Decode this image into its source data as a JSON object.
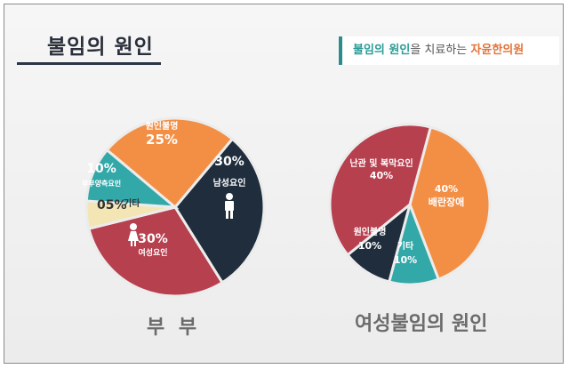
{
  "header": {
    "title": "불임의 원인",
    "brand": {
      "part1": "불임의 원인",
      "part2": "을 치료하는 ",
      "part3": "자윤한의원"
    }
  },
  "chart_data": [
    {
      "type": "pie",
      "caption": "부 부",
      "slices": [
        {
          "label": "남성요인",
          "value": 30,
          "value_text": "30%",
          "color": "#1f2d3d",
          "icon": "male-person-icon"
        },
        {
          "label": "여성요인",
          "value": 30,
          "value_text": "30%",
          "color": "#b7404f",
          "icon": "female-person-icon"
        },
        {
          "label": "기타",
          "value": 5,
          "value_text": "05%",
          "color": "#f3e6b4"
        },
        {
          "label": "부부양측요인",
          "value": 10,
          "value_text": "10%",
          "color": "#33a8a9"
        },
        {
          "label": "원인불명",
          "value": 25,
          "value_text": "25%",
          "color": "#f38f45"
        }
      ]
    },
    {
      "type": "pie",
      "caption": "여성불임의 원인",
      "slices": [
        {
          "label": "배란장애",
          "value": 40,
          "value_text": "40%",
          "color": "#f38f45"
        },
        {
          "label": "기타",
          "value": 10,
          "value_text": "10%",
          "color": "#33a8a9"
        },
        {
          "label": "원인불명",
          "value": 10,
          "value_text": "10%",
          "color": "#1f2d3d"
        },
        {
          "label": "난관 및 복막요인",
          "value": 40,
          "value_text": "40%",
          "color": "#b7404f"
        }
      ]
    }
  ]
}
